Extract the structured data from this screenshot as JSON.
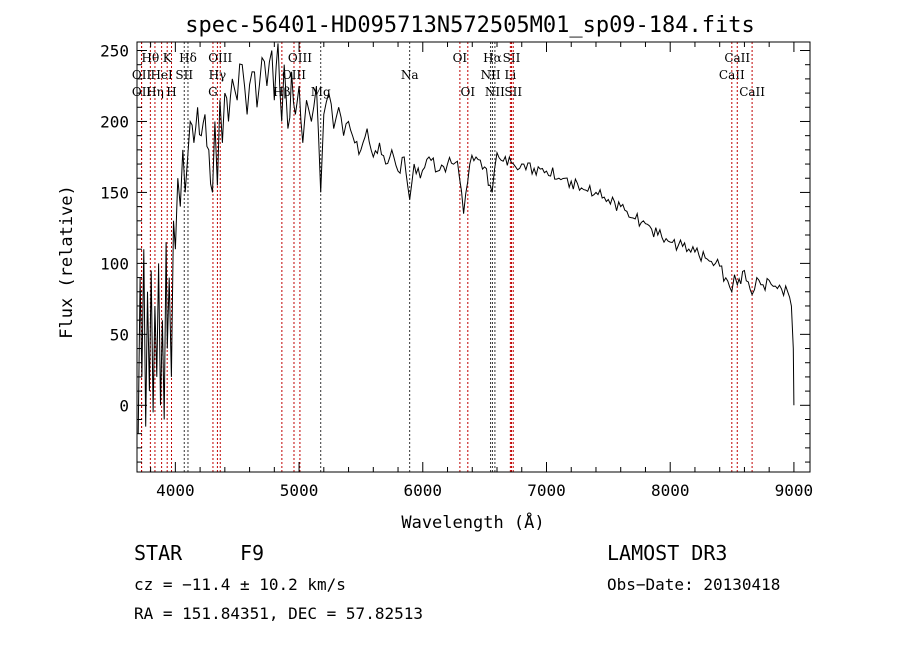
{
  "chart_data": {
    "type": "line",
    "title": "spec-56401-HD095713N572505M01_sp09-184.fits",
    "xlabel": "Wavelength (Å)",
    "ylabel": "Flux (relative)",
    "xlim": [
      3690,
      9130
    ],
    "ylim": [
      -47,
      256
    ],
    "xticks": [
      4000,
      5000,
      6000,
      7000,
      8000,
      9000
    ],
    "xtick_labels": [
      "4000",
      "5000",
      "6000",
      "7000",
      "8000",
      "9000"
    ],
    "yticks": [
      0,
      50,
      100,
      150,
      200,
      250
    ],
    "ytick_labels": [
      "0",
      "50",
      "100",
      "150",
      "200",
      "250"
    ],
    "lines": [
      {
        "name": "OII",
        "w": 3727,
        "row": 2,
        "color": "red"
      },
      {
        "name": "Hθ",
        "w": 3798,
        "row": 0,
        "color": "red"
      },
      {
        "name": "OII",
        "w": 3727,
        "row": 1,
        "color": "red"
      },
      {
        "name": "Hη",
        "w": 3835,
        "row": 2,
        "color": "red"
      },
      {
        "name": "HeI",
        "w": 3889,
        "row": 1,
        "color": "red"
      },
      {
        "name": "K",
        "w": 3934,
        "row": 0,
        "color": "red"
      },
      {
        "name": "H",
        "w": 3969,
        "row": 2,
        "color": "red"
      },
      {
        "name": "SII",
        "w": 4072,
        "row": 1,
        "color": "black"
      },
      {
        "name": "Hδ",
        "w": 4102,
        "row": 0,
        "color": "black"
      },
      {
        "name": "G",
        "w": 4304,
        "row": 2,
        "color": "red"
      },
      {
        "name": "Hγ",
        "w": 4340,
        "row": 1,
        "color": "red"
      },
      {
        "name": "OIII",
        "w": 4363,
        "row": 0,
        "color": "red"
      },
      {
        "name": "Hβ",
        "w": 4861,
        "row": 2,
        "color": "red"
      },
      {
        "name": "OIII",
        "w": 4959,
        "row": 1,
        "color": "red"
      },
      {
        "name": "OIII",
        "w": 5007,
        "row": 0,
        "color": "red"
      },
      {
        "name": "Mg",
        "w": 5175,
        "row": 2,
        "color": "black"
      },
      {
        "name": "Na",
        "w": 5894,
        "row": 1,
        "color": "black"
      },
      {
        "name": "OI",
        "w": 6300,
        "row": 0,
        "color": "red"
      },
      {
        "name": "OI",
        "w": 6364,
        "row": 2,
        "color": "red"
      },
      {
        "name": "NII",
        "w": 6548,
        "row": 1,
        "color": "black"
      },
      {
        "name": "Hα",
        "w": 6563,
        "row": 0,
        "color": "black"
      },
      {
        "name": "NII",
        "w": 6583,
        "row": 2,
        "color": "black"
      },
      {
        "name": "Li",
        "w": 6708,
        "row": 1,
        "color": "red"
      },
      {
        "name": "SII",
        "w": 6717,
        "row": 0,
        "color": "red"
      },
      {
        "name": "SII",
        "w": 6731,
        "row": 2,
        "color": "red"
      },
      {
        "name": "CaII",
        "w": 8498,
        "row": 1,
        "color": "red"
      },
      {
        "name": "CaII",
        "w": 8542,
        "row": 0,
        "color": "red"
      },
      {
        "name": "CaII",
        "w": 8662,
        "row": 2,
        "color": "red"
      }
    ],
    "spectrum": {
      "x": [
        3700,
        3715,
        3730,
        3745,
        3760,
        3775,
        3790,
        3805,
        3820,
        3835,
        3850,
        3865,
        3880,
        3895,
        3910,
        3925,
        3935,
        3950,
        3968,
        3985,
        4000,
        4020,
        4040,
        4060,
        4080,
        4100,
        4120,
        4150,
        4180,
        4210,
        4240,
        4270,
        4300,
        4320,
        4340,
        4360,
        4380,
        4400,
        4430,
        4460,
        4500,
        4540,
        4580,
        4620,
        4660,
        4700,
        4740,
        4780,
        4800,
        4830,
        4860,
        4880,
        4910,
        4940,
        4970,
        5000,
        5030,
        5060,
        5100,
        5140,
        5175,
        5200,
        5240,
        5280,
        5320,
        5360,
        5400,
        5450,
        5500,
        5550,
        5600,
        5650,
        5700,
        5750,
        5800,
        5850,
        5894,
        5930,
        5980,
        6050,
        6120,
        6200,
        6280,
        6330,
        6380,
        6430,
        6500,
        6560,
        6600,
        6650,
        6700,
        6750,
        6800,
        6900,
        7000,
        7100,
        7200,
        7300,
        7400,
        7500,
        7600,
        7700,
        7800,
        7900,
        8000,
        8100,
        8200,
        8300,
        8400,
        8498,
        8520,
        8542,
        8600,
        8662,
        8700,
        8750,
        8800,
        8850,
        8900,
        8950,
        8980,
        8995,
        9000
      ],
      "y": [
        -20,
        90,
        20,
        110,
        -15,
        80,
        10,
        95,
        -5,
        70,
        20,
        100,
        0,
        60,
        -10,
        115,
        40,
        90,
        20,
        130,
        110,
        160,
        140,
        180,
        150,
        175,
        200,
        185,
        210,
        190,
        205,
        180,
        150,
        200,
        155,
        215,
        185,
        220,
        200,
        230,
        215,
        240,
        205,
        235,
        210,
        245,
        225,
        250,
        215,
        255,
        200,
        240,
        195,
        235,
        205,
        225,
        185,
        215,
        200,
        225,
        150,
        205,
        220,
        195,
        210,
        190,
        200,
        185,
        180,
        195,
        175,
        185,
        170,
        180,
        165,
        175,
        145,
        170,
        160,
        175,
        165,
        170,
        172,
        135,
        170,
        175,
        168,
        150,
        178,
        172,
        175,
        168,
        170,
        167,
        165,
        160,
        158,
        152,
        150,
        145,
        140,
        132,
        128,
        120,
        115,
        112,
        108,
        103,
        98,
        80,
        92,
        85,
        95,
        78,
        90,
        85,
        88,
        84,
        82,
        80,
        70,
        40,
        0
      ]
    }
  },
  "footer": {
    "object_type": "STAR",
    "subclass": "F9",
    "survey": "LAMOST DR3",
    "cz": "cz = −11.4 ± 10.2 km/s",
    "obs_date": "Obs−Date: 20130418",
    "coords": "RA = 151.84351, DEC =  57.82513"
  }
}
